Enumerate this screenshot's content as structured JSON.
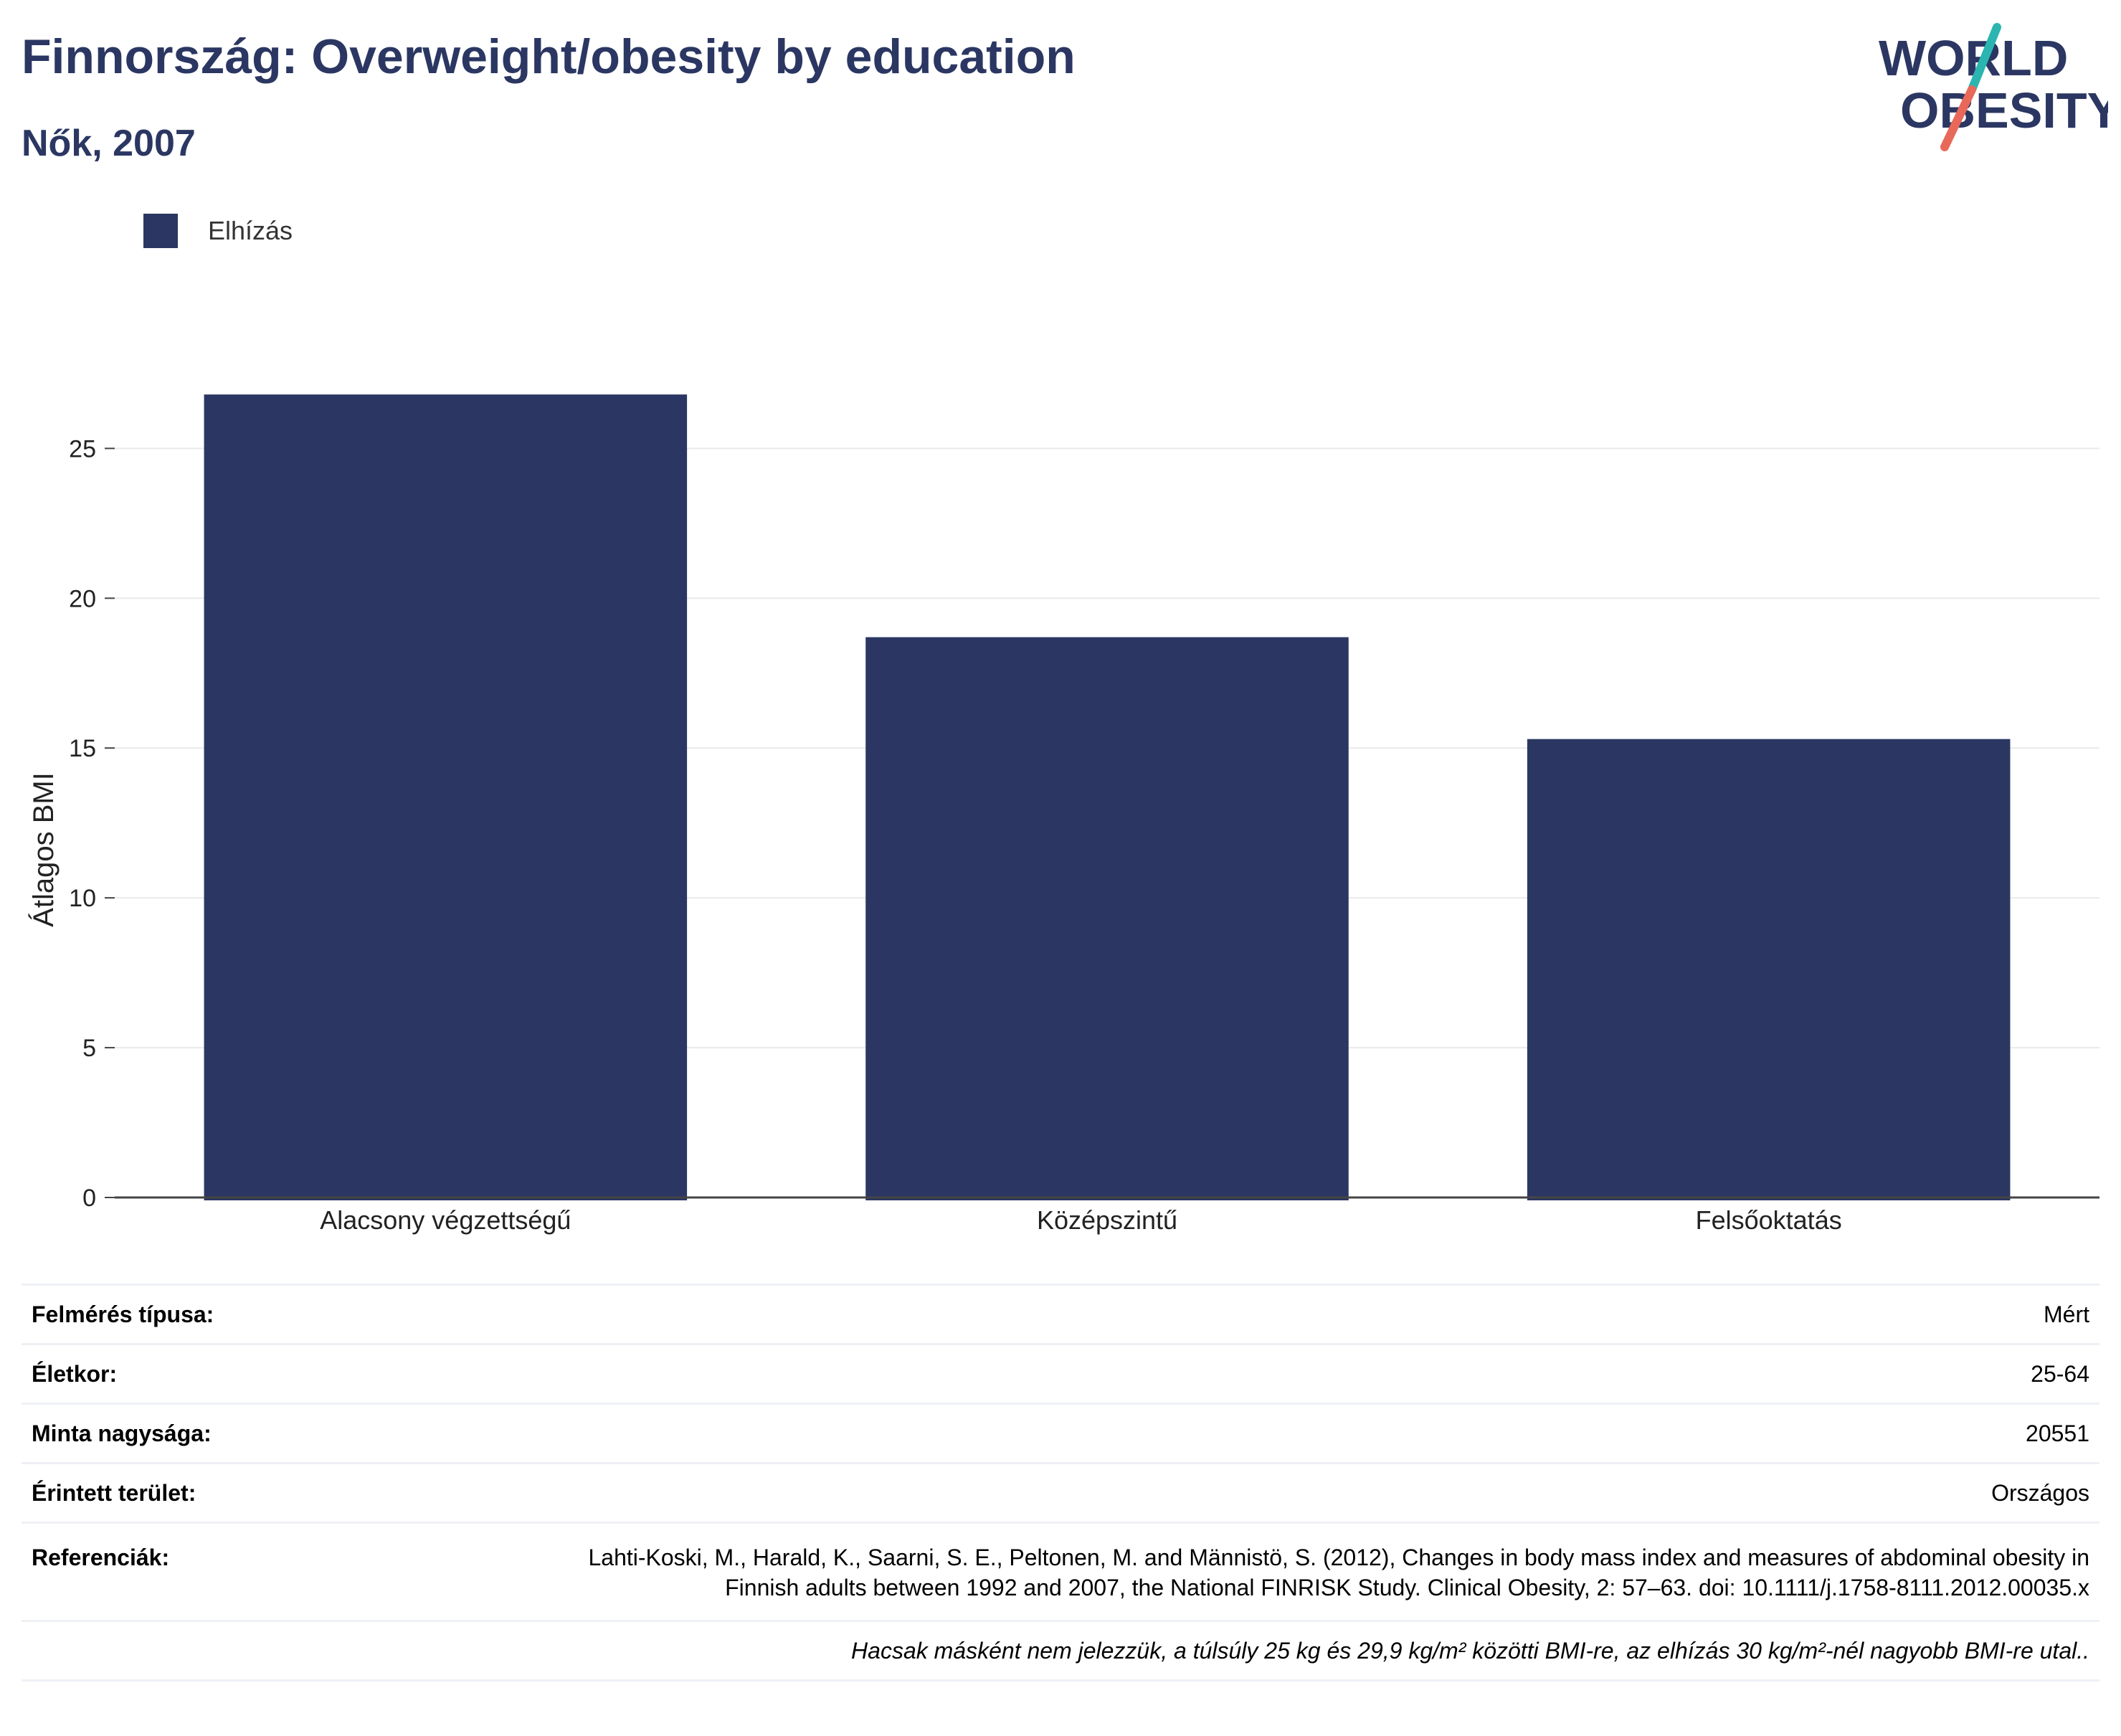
{
  "title": "Finnország: Overweight/obesity by education",
  "subtitle": "Nők, 2007",
  "logo": {
    "line1": "WORLD",
    "line2": "OBESITY"
  },
  "colors": {
    "bar": "#2b3762",
    "title": "#2b3762",
    "logo_teal": "#2bb5b0",
    "logo_coral": "#e8685a"
  },
  "chart_data": {
    "type": "bar",
    "title": "Finnország: Overweight/obesity by education",
    "subtitle": "Nők, 2007",
    "categories": [
      "Alacsony végzettségű",
      "Középszintű",
      "Felsőoktatás"
    ],
    "series": [
      {
        "name": "Elhízás",
        "values": [
          26.8,
          18.7,
          15.3
        ]
      }
    ],
    "ylabel": "Átlagos BMI",
    "xlabel": "",
    "ylim": [
      0,
      28
    ],
    "yticks": [
      0,
      5,
      10,
      15,
      20,
      25
    ],
    "grid": true,
    "legend": "top-left"
  },
  "table": {
    "rows": [
      {
        "label": "Felmérés típusa:",
        "value": "Mért"
      },
      {
        "label": "Életkor:",
        "value": "25-64"
      },
      {
        "label": "Minta nagysága:",
        "value": "20551"
      },
      {
        "label": "Érintett terület:",
        "value": "Országos"
      }
    ],
    "reference_label": "Referenciák:",
    "reference_value": "Lahti-Koski, M., Harald, K., Saarni, S. E., Peltonen, M. and Männistö, S. (2012), Changes in body mass index and measures of abdominal obesity in Finnish adults between 1992 and 2007, the National FINRISK Study. Clinical Obesity, 2: 57–63. doi: 10.1111/j.1758-8111.2012.00035.x",
    "note": "Hacsak másként nem jelezzük, a túlsúly 25 kg és 29,9 kg/m² közötti BMI-re, az elhízás 30 kg/m²-nél nagyobb BMI-re utal.."
  }
}
